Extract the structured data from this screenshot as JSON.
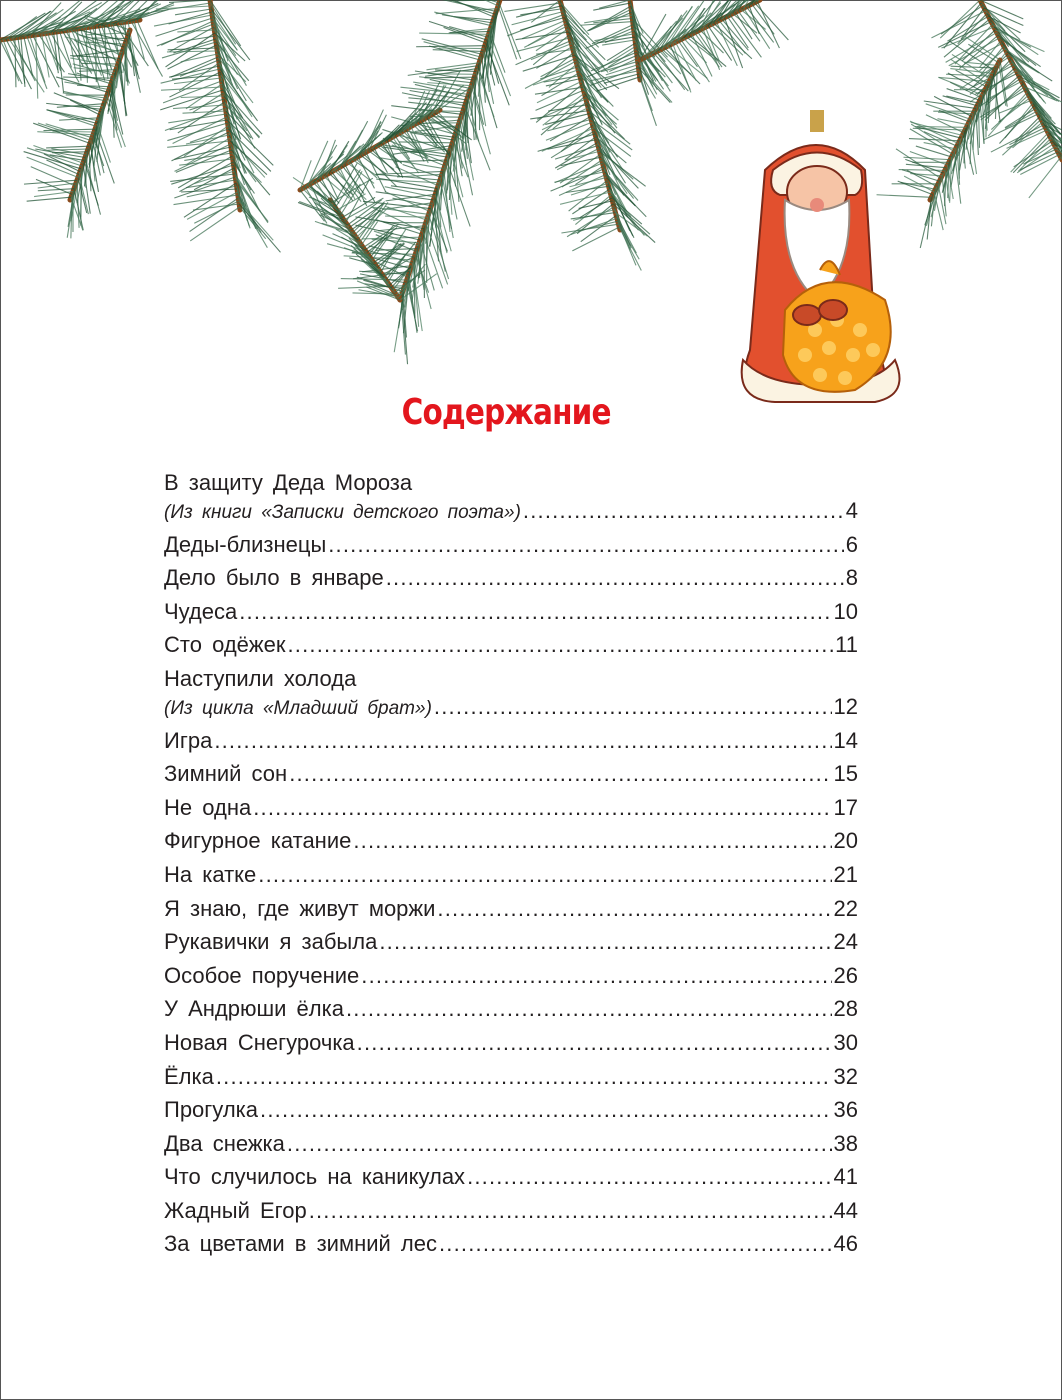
{
  "page": {
    "title": "Содержание",
    "accent_color": "#e3161d",
    "entries": [
      {
        "title": "В защиту Деда Мороза",
        "subtitle": "(Из книги «Записки детского поэта»)",
        "page": "4"
      },
      {
        "title": "Деды-близнецы",
        "page": "6"
      },
      {
        "title": "Дело было в январе",
        "page": "8"
      },
      {
        "title": "Чудеса",
        "page": "10"
      },
      {
        "title": "Сто одёжек",
        "page": "11"
      },
      {
        "title": "Наступили холода",
        "subtitle": "(Из цикла «Младший брат»)",
        "page": "12"
      },
      {
        "title": "Игра",
        "page": "14"
      },
      {
        "title": "Зимний сон",
        "page": "15"
      },
      {
        "title": "Не одна",
        "page": "17"
      },
      {
        "title": "Фигурное катание",
        "page": "20"
      },
      {
        "title": "На катке",
        "page": "21"
      },
      {
        "title": "Я знаю, где живут моржи",
        "page": "22"
      },
      {
        "title": "Рукавички я забыла",
        "page": "24"
      },
      {
        "title": "Особое поручение",
        "page": "26"
      },
      {
        "title": "У Андрюши ёлка",
        "page": "28"
      },
      {
        "title": "Новая Снегурочка",
        "page": "30"
      },
      {
        "title": "Ёлка",
        "page": "32"
      },
      {
        "title": "Прогулка",
        "page": "36"
      },
      {
        "title": "Два снежка",
        "page": "38"
      },
      {
        "title": "Что случилось на каникулах",
        "page": "41"
      },
      {
        "title": "Жадный Егор",
        "page": "44"
      },
      {
        "title": "За цветами в зимний лес",
        "page": "46"
      }
    ]
  },
  "illustrations": {
    "top": "pine-branches",
    "ornament": "ded-moroz-ornament"
  }
}
